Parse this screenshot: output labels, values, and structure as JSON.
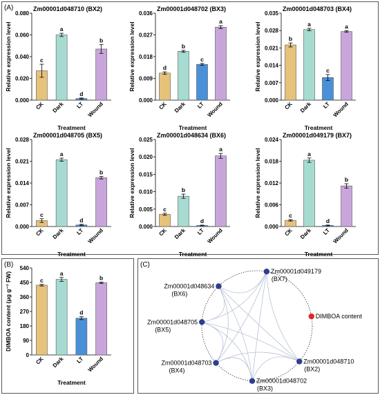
{
  "colors": {
    "CK": "#e6c27a",
    "Dark": "#a6dbd2",
    "LT": "#4a90d9",
    "Wound": "#c8a6db",
    "gene_node": "#2e3d8f",
    "metabolite_node": "#e0262a",
    "edge": "#b8c0d6"
  },
  "panels": {
    "A_label": "(A)",
    "B_label": "(B)",
    "C_label": "(C)"
  },
  "chart_data": [
    {
      "type": "bar",
      "panel": "A",
      "title": "Zm00001d048710 (BX2)",
      "xlabel": "Treatment",
      "ylabel": "Relative expression level",
      "categories": [
        "CK",
        "Dark",
        "LT",
        "Wound"
      ],
      "values": [
        0.027,
        0.06,
        0.0015,
        0.047
      ],
      "errors": [
        0.006,
        0.0015,
        0.0005,
        0.004
      ],
      "significance": [
        "c",
        "a",
        "d",
        "b"
      ],
      "yticks": [
        "0.000",
        "0.020",
        "0.040",
        "0.060",
        "0.080"
      ],
      "ylim": [
        0,
        0.08
      ]
    },
    {
      "type": "bar",
      "panel": "A",
      "title": "Zm00001d048702 (BX3)",
      "xlabel": "Treatment",
      "ylabel": "Relative expression level",
      "categories": [
        "CK",
        "Dark",
        "LT",
        "Wound"
      ],
      "values": [
        0.0112,
        0.0202,
        0.0148,
        0.0302
      ],
      "errors": [
        0.0005,
        0.0004,
        0.0004,
        0.0006
      ],
      "significance": [
        "d",
        "b",
        "c",
        "a"
      ],
      "yticks": [
        "0.000",
        "0.009",
        "0.018",
        "0.027",
        "0.036"
      ],
      "ylim": [
        0,
        0.036
      ]
    },
    {
      "type": "bar",
      "panel": "A",
      "title": "Zm00001d048703 (BX4)",
      "xlabel": "Treatment",
      "ylabel": "Relative expression level",
      "categories": [
        "CK",
        "Dark",
        "LT",
        "Wound"
      ],
      "values": [
        0.0222,
        0.0284,
        0.0091,
        0.0276
      ],
      "errors": [
        0.0008,
        0.0005,
        0.0012,
        0.0003
      ],
      "significance": [
        "b",
        "a",
        "c",
        "a"
      ],
      "yticks": [
        "0.000",
        "0.007",
        "0.014",
        "0.021",
        "0.028",
        "0.035"
      ],
      "ylim": [
        0,
        0.035
      ]
    },
    {
      "type": "bar",
      "panel": "A",
      "title": "Zm00001d048705 (BX5)",
      "xlabel": "Treatment",
      "ylabel": "Relative expression level",
      "categories": [
        "CK",
        "Dark",
        "LT",
        "Wound"
      ],
      "values": [
        0.0019,
        0.0215,
        0.0005,
        0.0157
      ],
      "errors": [
        0.0006,
        0.0005,
        0.0002,
        0.0004
      ],
      "significance": [
        "c",
        "a",
        "d",
        "b"
      ],
      "yticks": [
        "0.000",
        "0.007",
        "0.014",
        "0.021",
        "0.028"
      ],
      "ylim": [
        0,
        0.028
      ]
    },
    {
      "type": "bar",
      "panel": "A",
      "title": "Zm00001d048634 (BX6)",
      "xlabel": "Treatment",
      "ylabel": "Relative expression level",
      "categories": [
        "CK",
        "Dark",
        "LT",
        "Wound"
      ],
      "values": [
        0.0035,
        0.0087,
        0.0003,
        0.0203
      ],
      "errors": [
        0.0003,
        0.0006,
        0.0001,
        0.0007
      ],
      "significance": [
        "c",
        "b",
        "d",
        "a"
      ],
      "yticks": [
        "0.000",
        "0.005",
        "0.010",
        "0.015",
        "0.020",
        "0.025"
      ],
      "ylim": [
        0,
        0.025
      ]
    },
    {
      "type": "bar",
      "panel": "A",
      "title": "Zm00001d049179 (BX7)",
      "xlabel": "Treatment",
      "ylabel": "Relative expression level",
      "categories": [
        "CK",
        "Dark",
        "LT",
        "Wound"
      ],
      "values": [
        0.0017,
        0.0183,
        0.0003,
        0.0112
      ],
      "errors": [
        0.0002,
        0.0006,
        0.0001,
        0.0006
      ],
      "significance": [
        "c",
        "a",
        "d",
        "b"
      ],
      "yticks": [
        "0.000",
        "0.006",
        "0.012",
        "0.018",
        "0.024"
      ],
      "ylim": [
        0,
        0.024
      ]
    },
    {
      "type": "bar",
      "panel": "B",
      "title": "",
      "xlabel": "Treatment",
      "ylabel": "DIMBOA content (μg g⁻¹ FW)",
      "categories": [
        "CK",
        "Dark",
        "LT",
        "Wound"
      ],
      "values": [
        433,
        469,
        228,
        448
      ],
      "errors": [
        5,
        12,
        9,
        4
      ],
      "significance": [
        "c",
        "a",
        "d",
        "b"
      ],
      "yticks": [
        "0",
        "90",
        "180",
        "270",
        "360",
        "450",
        "540"
      ],
      "ylim": [
        0,
        540
      ]
    }
  ],
  "network": {
    "nodes": [
      {
        "id": "BX7",
        "line1": "Zm00001d049179",
        "line2": "(BX7)",
        "kind": "gene",
        "angle": -80
      },
      {
        "id": "DIMBOA",
        "line1": "DIMBOA content",
        "line2": "",
        "kind": "metabolite",
        "angle": -10
      },
      {
        "id": "BX2",
        "line1": "Zm00001d048710",
        "line2": "(BX2)",
        "kind": "gene",
        "angle": 40
      },
      {
        "id": "BX3",
        "line1": "Zm00001d048702",
        "line2": "(BX3)",
        "kind": "gene",
        "angle": 95
      },
      {
        "id": "BX4",
        "line1": "Zm00001d048703",
        "line2": "(BX4)",
        "kind": "gene",
        "angle": 138
      },
      {
        "id": "BX5",
        "line1": "Zm00001d048705",
        "line2": "(BX5)",
        "kind": "gene",
        "angle": 184
      },
      {
        "id": "BX6",
        "line1": "Zm00001d048634",
        "line2": "(BX6)",
        "kind": "gene",
        "angle": 226
      }
    ],
    "edges": [
      [
        "BX7",
        "BX2"
      ],
      [
        "BX7",
        "BX3"
      ],
      [
        "BX7",
        "BX4"
      ],
      [
        "BX7",
        "BX5"
      ],
      [
        "BX7",
        "BX6"
      ],
      [
        "BX6",
        "BX2"
      ],
      [
        "BX6",
        "BX3"
      ],
      [
        "BX6",
        "BX4"
      ],
      [
        "BX6",
        "BX5"
      ],
      [
        "BX5",
        "BX2"
      ],
      [
        "BX5",
        "BX3"
      ],
      [
        "BX5",
        "BX4"
      ],
      [
        "BX4",
        "BX2"
      ],
      [
        "BX4",
        "BX3"
      ],
      [
        "BX3",
        "BX2"
      ]
    ]
  }
}
